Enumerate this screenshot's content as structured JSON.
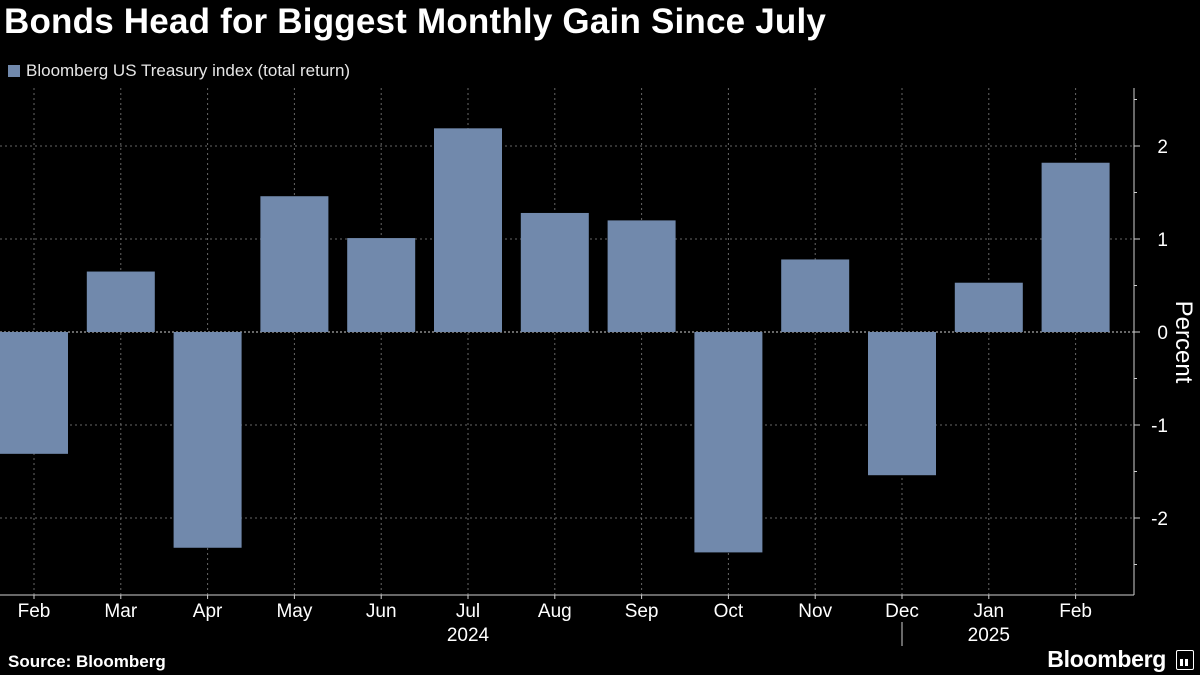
{
  "header": {
    "title": "Bonds Head for Biggest Monthly Gain Since July"
  },
  "footer": {
    "source": "Source: Bloomberg",
    "brand": "Bloomberg"
  },
  "colors": {
    "background": "#000000",
    "bar": "#7189ac",
    "text": "#ffffff",
    "grid": "#666666"
  },
  "chart_data": {
    "type": "bar",
    "title": "Bonds Head for Biggest Monthly Gain Since July",
    "categories": [
      "Feb",
      "Mar",
      "Apr",
      "May",
      "Jun",
      "Jul",
      "Aug",
      "Sep",
      "Oct",
      "Nov",
      "Dec",
      "Jan",
      "Feb"
    ],
    "year_labels": [
      {
        "label": "2024",
        "category_index": 5
      },
      {
        "label": "2025",
        "category_index": 11
      }
    ],
    "series": [
      {
        "name": "Bloomberg US Treasury index (total return)",
        "values": [
          -1.31,
          0.65,
          -2.32,
          1.46,
          1.01,
          2.19,
          1.28,
          1.2,
          -2.37,
          0.78,
          -1.54,
          0.53,
          1.82
        ]
      }
    ],
    "ylabel": "Percent",
    "xlabel": "",
    "ylim": [
      -2.8,
      2.6
    ],
    "yticks": [
      -2,
      -1,
      0,
      1,
      2
    ],
    "ytick_labels": [
      "-2",
      "-1",
      "0",
      "1",
      "2"
    ],
    "grid": true,
    "legend_position": "top-left",
    "y_axis_side": "right"
  }
}
